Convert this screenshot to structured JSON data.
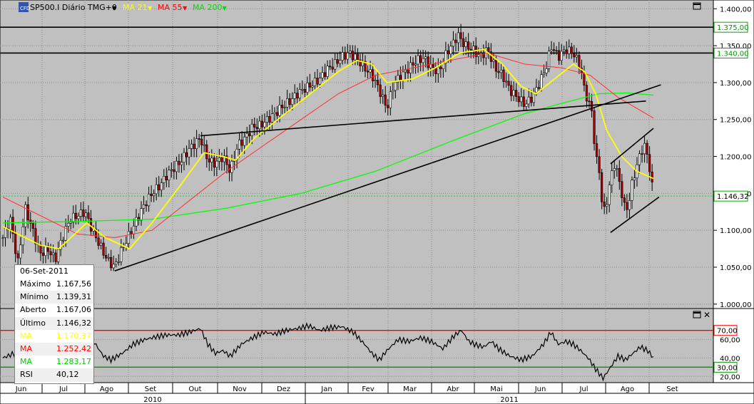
{
  "header": {
    "logo": "CFD",
    "symbol": "SP500.I Diário TMG+0",
    "indicators": [
      {
        "label": "MA 21",
        "color": "#ffff00"
      },
      {
        "label": "MA 55",
        "color": "#ff0000"
      },
      {
        "label": "MA 200",
        "color": "#00dd00"
      }
    ]
  },
  "info_panel": {
    "date": "06-Set-2011",
    "rows": [
      {
        "label": "Máximo",
        "value": "1.167,56",
        "color": "#000000"
      },
      {
        "label": "Mínimo",
        "value": "1.139,31",
        "color": "#000000"
      },
      {
        "label": "Aberto",
        "value": "1.167,06",
        "color": "#000000"
      },
      {
        "label": "Último",
        "value": "1.146,32",
        "color": "#000000"
      },
      {
        "label": "MA",
        "value": "1.170,37",
        "color": "#ffff00"
      },
      {
        "label": "MA",
        "value": "1.252,42",
        "color": "#ff0000"
      },
      {
        "label": "MA",
        "value": "1.283,17",
        "color": "#00cc00"
      },
      {
        "label": "RSI",
        "value": "40,12",
        "color": "#000000"
      }
    ]
  },
  "chart_data": {
    "type": "line",
    "price_axis": {
      "ticks": [
        "1.400,00",
        "1.350,00",
        "1.300,00",
        "1.250,00",
        "1.200,00",
        "1.150,00",
        "1.100,00",
        "1.050,00",
        "1.000,00"
      ],
      "tick_values": [
        1400,
        1350,
        1300,
        1250,
        1200,
        1150,
        1100,
        1050,
        1000
      ],
      "ylim": [
        995,
        1408
      ],
      "highlight_labels": [
        {
          "value": 1375,
          "text": "1.375,00",
          "color": "#009900"
        },
        {
          "value": 1340,
          "text": "1.340,00",
          "color": "#009900"
        },
        {
          "value": 1146.32,
          "text": "1.146,32",
          "color": "#000000"
        }
      ],
      "horizontal_lines": [
        1375,
        1340
      ],
      "last_price": 1146.32
    },
    "rsi_axis": {
      "ticks": [
        "60,00",
        "40,00",
        "20,00"
      ],
      "tick_values": [
        60,
        40,
        20
      ],
      "ylim": [
        14,
        93
      ],
      "levels": [
        {
          "value": 70,
          "text": "70,00",
          "color": "#ff0000"
        },
        {
          "value": 30,
          "text": "30,00",
          "color": "#009900"
        }
      ]
    },
    "months": [
      "Jun",
      "Jul",
      "Ago",
      "Set",
      "Out",
      "Nov",
      "Dez",
      "Jan",
      "Fev",
      "Mar",
      "Abr",
      "Mai",
      "Jun",
      "Jul",
      "Ago",
      "Set"
    ],
    "years": [
      "2010",
      "2011"
    ],
    "price_series": [
      {
        "d": 0,
        "v": 1090
      },
      {
        "d": 4,
        "v": 1115
      },
      {
        "d": 8,
        "v": 1055
      },
      {
        "d": 12,
        "v": 1130
      },
      {
        "d": 16,
        "v": 1100
      },
      {
        "d": 20,
        "v": 1068
      },
      {
        "d": 24,
        "v": 1075
      },
      {
        "d": 28,
        "v": 1060
      },
      {
        "d": 32,
        "v": 1090
      },
      {
        "d": 36,
        "v": 1115
      },
      {
        "d": 40,
        "v": 1120
      },
      {
        "d": 44,
        "v": 1125
      },
      {
        "d": 48,
        "v": 1100
      },
      {
        "d": 52,
        "v": 1080
      },
      {
        "d": 56,
        "v": 1060
      },
      {
        "d": 60,
        "v": 1050
      },
      {
        "d": 64,
        "v": 1075
      },
      {
        "d": 68,
        "v": 1095
      },
      {
        "d": 72,
        "v": 1115
      },
      {
        "d": 76,
        "v": 1135
      },
      {
        "d": 80,
        "v": 1150
      },
      {
        "d": 84,
        "v": 1160
      },
      {
        "d": 88,
        "v": 1175
      },
      {
        "d": 92,
        "v": 1185
      },
      {
        "d": 96,
        "v": 1195
      },
      {
        "d": 100,
        "v": 1210
      },
      {
        "d": 104,
        "v": 1220
      },
      {
        "d": 106,
        "v": 1225
      },
      {
        "d": 110,
        "v": 1195
      },
      {
        "d": 114,
        "v": 1190
      },
      {
        "d": 118,
        "v": 1200
      },
      {
        "d": 122,
        "v": 1180
      },
      {
        "d": 126,
        "v": 1215
      },
      {
        "d": 130,
        "v": 1225
      },
      {
        "d": 134,
        "v": 1240
      },
      {
        "d": 138,
        "v": 1242
      },
      {
        "d": 142,
        "v": 1250
      },
      {
        "d": 146,
        "v": 1258
      },
      {
        "d": 150,
        "v": 1268
      },
      {
        "d": 154,
        "v": 1275
      },
      {
        "d": 158,
        "v": 1285
      },
      {
        "d": 162,
        "v": 1292
      },
      {
        "d": 166,
        "v": 1298
      },
      {
        "d": 170,
        "v": 1305
      },
      {
        "d": 174,
        "v": 1318
      },
      {
        "d": 178,
        "v": 1325
      },
      {
        "d": 182,
        "v": 1335
      },
      {
        "d": 186,
        "v": 1340
      },
      {
        "d": 190,
        "v": 1332
      },
      {
        "d": 194,
        "v": 1320
      },
      {
        "d": 198,
        "v": 1310
      },
      {
        "d": 202,
        "v": 1290
      },
      {
        "d": 206,
        "v": 1265
      },
      {
        "d": 210,
        "v": 1300
      },
      {
        "d": 214,
        "v": 1310
      },
      {
        "d": 218,
        "v": 1320
      },
      {
        "d": 222,
        "v": 1330
      },
      {
        "d": 226,
        "v": 1333
      },
      {
        "d": 230,
        "v": 1320
      },
      {
        "d": 234,
        "v": 1315
      },
      {
        "d": 238,
        "v": 1340
      },
      {
        "d": 242,
        "v": 1355
      },
      {
        "d": 244,
        "v": 1365
      },
      {
        "d": 248,
        "v": 1350
      },
      {
        "d": 252,
        "v": 1345
      },
      {
        "d": 256,
        "v": 1335
      },
      {
        "d": 260,
        "v": 1345
      },
      {
        "d": 264,
        "v": 1320
      },
      {
        "d": 268,
        "v": 1310
      },
      {
        "d": 272,
        "v": 1290
      },
      {
        "d": 276,
        "v": 1280
      },
      {
        "d": 280,
        "v": 1270
      },
      {
        "d": 284,
        "v": 1280
      },
      {
        "d": 288,
        "v": 1300
      },
      {
        "d": 292,
        "v": 1325
      },
      {
        "d": 294,
        "v": 1350
      },
      {
        "d": 298,
        "v": 1335
      },
      {
        "d": 302,
        "v": 1345
      },
      {
        "d": 306,
        "v": 1340
      },
      {
        "d": 310,
        "v": 1320
      },
      {
        "d": 312,
        "v": 1290
      },
      {
        "d": 316,
        "v": 1260
      },
      {
        "d": 318,
        "v": 1200
      },
      {
        "d": 320,
        "v": 1180
      },
      {
        "d": 322,
        "v": 1120
      },
      {
        "d": 324,
        "v": 1140
      },
      {
        "d": 326,
        "v": 1170
      },
      {
        "d": 328,
        "v": 1190
      },
      {
        "d": 330,
        "v": 1175
      },
      {
        "d": 332,
        "v": 1150
      },
      {
        "d": 334,
        "v": 1125
      },
      {
        "d": 336,
        "v": 1140
      },
      {
        "d": 338,
        "v": 1170
      },
      {
        "d": 340,
        "v": 1185
      },
      {
        "d": 342,
        "v": 1205
      },
      {
        "d": 344,
        "v": 1215
      },
      {
        "d": 346,
        "v": 1200
      },
      {
        "d": 348,
        "v": 1165
      },
      {
        "d": 349,
        "v": 1146
      }
    ],
    "ma21": [
      {
        "d": 0,
        "v": 1105
      },
      {
        "d": 20,
        "v": 1080
      },
      {
        "d": 30,
        "v": 1075
      },
      {
        "d": 45,
        "v": 1110
      },
      {
        "d": 55,
        "v": 1090
      },
      {
        "d": 68,
        "v": 1075
      },
      {
        "d": 80,
        "v": 1110
      },
      {
        "d": 95,
        "v": 1160
      },
      {
        "d": 108,
        "v": 1205
      },
      {
        "d": 118,
        "v": 1200
      },
      {
        "d": 125,
        "v": 1195
      },
      {
        "d": 135,
        "v": 1225
      },
      {
        "d": 150,
        "v": 1255
      },
      {
        "d": 165,
        "v": 1285
      },
      {
        "d": 180,
        "v": 1315
      },
      {
        "d": 190,
        "v": 1330
      },
      {
        "d": 198,
        "v": 1325
      },
      {
        "d": 206,
        "v": 1300
      },
      {
        "d": 220,
        "v": 1305
      },
      {
        "d": 232,
        "v": 1320
      },
      {
        "d": 245,
        "v": 1340
      },
      {
        "d": 258,
        "v": 1345
      },
      {
        "d": 268,
        "v": 1325
      },
      {
        "d": 278,
        "v": 1295
      },
      {
        "d": 286,
        "v": 1285
      },
      {
        "d": 296,
        "v": 1305
      },
      {
        "d": 306,
        "v": 1325
      },
      {
        "d": 312,
        "v": 1315
      },
      {
        "d": 318,
        "v": 1285
      },
      {
        "d": 324,
        "v": 1235
      },
      {
        "d": 332,
        "v": 1200
      },
      {
        "d": 340,
        "v": 1180
      },
      {
        "d": 349,
        "v": 1170
      }
    ],
    "ma55": [
      {
        "d": 0,
        "v": 1145
      },
      {
        "d": 20,
        "v": 1120
      },
      {
        "d": 40,
        "v": 1095
      },
      {
        "d": 60,
        "v": 1090
      },
      {
        "d": 80,
        "v": 1100
      },
      {
        "d": 100,
        "v": 1140
      },
      {
        "d": 120,
        "v": 1180
      },
      {
        "d": 140,
        "v": 1215
      },
      {
        "d": 160,
        "v": 1250
      },
      {
        "d": 180,
        "v": 1285
      },
      {
        "d": 200,
        "v": 1310
      },
      {
        "d": 220,
        "v": 1320
      },
      {
        "d": 240,
        "v": 1330
      },
      {
        "d": 260,
        "v": 1340
      },
      {
        "d": 280,
        "v": 1325
      },
      {
        "d": 300,
        "v": 1320
      },
      {
        "d": 315,
        "v": 1310
      },
      {
        "d": 330,
        "v": 1280
      },
      {
        "d": 349,
        "v": 1252
      }
    ],
    "ma200": [
      {
        "d": 0,
        "v": 1110
      },
      {
        "d": 40,
        "v": 1112
      },
      {
        "d": 80,
        "v": 1115
      },
      {
        "d": 120,
        "v": 1130
      },
      {
        "d": 160,
        "v": 1150
      },
      {
        "d": 200,
        "v": 1180
      },
      {
        "d": 240,
        "v": 1220
      },
      {
        "d": 280,
        "v": 1258
      },
      {
        "d": 300,
        "v": 1272
      },
      {
        "d": 320,
        "v": 1285
      },
      {
        "d": 335,
        "v": 1286
      },
      {
        "d": 349,
        "v": 1283
      }
    ],
    "trendlines": [
      {
        "from": {
          "d": 60,
          "v": 1045
        },
        "to": {
          "d": 353,
          "v": 1297
        }
      },
      {
        "from": {
          "d": 106,
          "v": 1228
        },
        "to": {
          "d": 345,
          "v": 1275
        }
      },
      {
        "from": {
          "d": 326,
          "v": 1190
        },
        "to": {
          "d": 349,
          "v": 1238
        }
      },
      {
        "from": {
          "d": 326,
          "v": 1097
        },
        "to": {
          "d": 352,
          "v": 1145
        }
      }
    ],
    "rsi_series": [
      {
        "d": 0,
        "v": 40
      },
      {
        "d": 6,
        "v": 45
      },
      {
        "d": 12,
        "v": 48
      },
      {
        "d": 18,
        "v": 38
      },
      {
        "d": 24,
        "v": 45
      },
      {
        "d": 30,
        "v": 50
      },
      {
        "d": 36,
        "v": 55
      },
      {
        "d": 42,
        "v": 52
      },
      {
        "d": 48,
        "v": 60
      },
      {
        "d": 54,
        "v": 42
      },
      {
        "d": 58,
        "v": 38
      },
      {
        "d": 64,
        "v": 45
      },
      {
        "d": 70,
        "v": 55
      },
      {
        "d": 76,
        "v": 60
      },
      {
        "d": 82,
        "v": 63
      },
      {
        "d": 88,
        "v": 65
      },
      {
        "d": 94,
        "v": 65
      },
      {
        "d": 100,
        "v": 68
      },
      {
        "d": 106,
        "v": 72
      },
      {
        "d": 110,
        "v": 55
      },
      {
        "d": 114,
        "v": 45
      },
      {
        "d": 118,
        "v": 48
      },
      {
        "d": 122,
        "v": 42
      },
      {
        "d": 128,
        "v": 55
      },
      {
        "d": 134,
        "v": 62
      },
      {
        "d": 140,
        "v": 68
      },
      {
        "d": 146,
        "v": 66
      },
      {
        "d": 152,
        "v": 70
      },
      {
        "d": 158,
        "v": 72
      },
      {
        "d": 164,
        "v": 75
      },
      {
        "d": 170,
        "v": 70
      },
      {
        "d": 176,
        "v": 73
      },
      {
        "d": 182,
        "v": 74
      },
      {
        "d": 188,
        "v": 68
      },
      {
        "d": 194,
        "v": 55
      },
      {
        "d": 198,
        "v": 45
      },
      {
        "d": 202,
        "v": 38
      },
      {
        "d": 206,
        "v": 48
      },
      {
        "d": 212,
        "v": 60
      },
      {
        "d": 218,
        "v": 58
      },
      {
        "d": 224,
        "v": 62
      },
      {
        "d": 230,
        "v": 58
      },
      {
        "d": 236,
        "v": 50
      },
      {
        "d": 242,
        "v": 64
      },
      {
        "d": 246,
        "v": 70
      },
      {
        "d": 250,
        "v": 58
      },
      {
        "d": 254,
        "v": 54
      },
      {
        "d": 258,
        "v": 52
      },
      {
        "d": 262,
        "v": 58
      },
      {
        "d": 266,
        "v": 50
      },
      {
        "d": 272,
        "v": 42
      },
      {
        "d": 278,
        "v": 38
      },
      {
        "d": 284,
        "v": 42
      },
      {
        "d": 290,
        "v": 55
      },
      {
        "d": 294,
        "v": 68
      },
      {
        "d": 298,
        "v": 55
      },
      {
        "d": 302,
        "v": 58
      },
      {
        "d": 306,
        "v": 55
      },
      {
        "d": 310,
        "v": 48
      },
      {
        "d": 314,
        "v": 40
      },
      {
        "d": 318,
        "v": 28
      },
      {
        "d": 322,
        "v": 18
      },
      {
        "d": 326,
        "v": 30
      },
      {
        "d": 330,
        "v": 42
      },
      {
        "d": 334,
        "v": 38
      },
      {
        "d": 338,
        "v": 45
      },
      {
        "d": 342,
        "v": 52
      },
      {
        "d": 346,
        "v": 48
      },
      {
        "d": 349,
        "v": 40
      }
    ]
  }
}
